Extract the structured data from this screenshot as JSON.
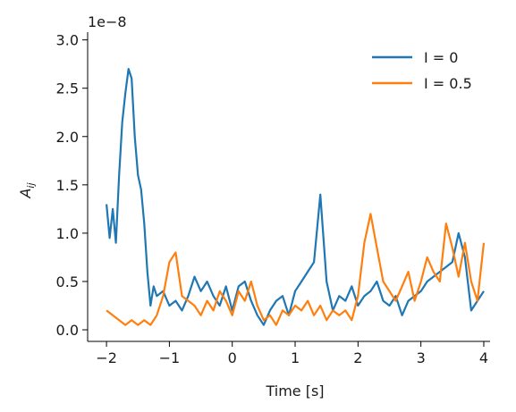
{
  "chart_data": {
    "type": "line",
    "title": "",
    "xlabel": "Time [s]",
    "ylabel_base": "A",
    "ylabel_sub": "ij",
    "offset_text": "1e−8",
    "xlim": [
      -2.3,
      4.1
    ],
    "ylim": [
      -0.12,
      3.08
    ],
    "xticks": [
      -2,
      -1,
      0,
      1,
      2,
      3,
      4
    ],
    "xtick_labels": [
      "−2",
      "−1",
      "0",
      "1",
      "2",
      "3",
      "4"
    ],
    "yticks": [
      0.0,
      0.5,
      1.0,
      1.5,
      2.0,
      2.5,
      3.0
    ],
    "ytick_labels": [
      "0.0",
      "0.5",
      "1.0",
      "1.5",
      "2.0",
      "2.5",
      "3.0"
    ],
    "grid": false,
    "legend_position": "top-right",
    "series": [
      {
        "name": "I = 0",
        "color": "#1f77b4",
        "x": [
          -2.0,
          -1.95,
          -1.9,
          -1.85,
          -1.8,
          -1.75,
          -1.7,
          -1.65,
          -1.6,
          -1.55,
          -1.5,
          -1.45,
          -1.4,
          -1.35,
          -1.3,
          -1.25,
          -1.2,
          -1.1,
          -1.0,
          -0.9,
          -0.8,
          -0.7,
          -0.6,
          -0.5,
          -0.4,
          -0.3,
          -0.2,
          -0.1,
          0.0,
          0.1,
          0.2,
          0.3,
          0.4,
          0.5,
          0.6,
          0.7,
          0.8,
          0.9,
          1.0,
          1.1,
          1.2,
          1.3,
          1.4,
          1.5,
          1.6,
          1.7,
          1.8,
          1.9,
          2.0,
          2.1,
          2.2,
          2.3,
          2.4,
          2.5,
          2.6,
          2.7,
          2.8,
          2.9,
          3.0,
          3.1,
          3.2,
          3.3,
          3.4,
          3.5,
          3.6,
          3.7,
          3.8,
          3.9,
          4.0
        ],
        "values": [
          1.3,
          0.95,
          1.25,
          0.9,
          1.6,
          2.15,
          2.45,
          2.7,
          2.6,
          2.0,
          1.6,
          1.45,
          1.1,
          0.6,
          0.25,
          0.45,
          0.35,
          0.4,
          0.25,
          0.3,
          0.2,
          0.35,
          0.55,
          0.4,
          0.5,
          0.35,
          0.25,
          0.45,
          0.2,
          0.45,
          0.5,
          0.3,
          0.15,
          0.05,
          0.2,
          0.3,
          0.35,
          0.15,
          0.4,
          0.5,
          0.6,
          0.7,
          1.4,
          0.5,
          0.2,
          0.35,
          0.3,
          0.45,
          0.25,
          0.35,
          0.4,
          0.5,
          0.3,
          0.25,
          0.35,
          0.15,
          0.3,
          0.35,
          0.4,
          0.5,
          0.55,
          0.6,
          0.65,
          0.7,
          1.0,
          0.75,
          0.2,
          0.3,
          0.4
        ]
      },
      {
        "name": "I = 0.5",
        "color": "#ff7f0e",
        "x": [
          -2.0,
          -1.9,
          -1.8,
          -1.7,
          -1.6,
          -1.5,
          -1.4,
          -1.3,
          -1.2,
          -1.1,
          -1.0,
          -0.9,
          -0.8,
          -0.7,
          -0.6,
          -0.5,
          -0.4,
          -0.3,
          -0.2,
          -0.1,
          0.0,
          0.1,
          0.2,
          0.3,
          0.4,
          0.5,
          0.6,
          0.7,
          0.8,
          0.9,
          1.0,
          1.1,
          1.2,
          1.3,
          1.4,
          1.5,
          1.6,
          1.7,
          1.8,
          1.9,
          2.0,
          2.1,
          2.2,
          2.3,
          2.4,
          2.5,
          2.6,
          2.7,
          2.8,
          2.9,
          3.0,
          3.1,
          3.2,
          3.3,
          3.4,
          3.5,
          3.6,
          3.7,
          3.8,
          3.9,
          4.0
        ],
        "values": [
          0.2,
          0.15,
          0.1,
          0.05,
          0.1,
          0.05,
          0.1,
          0.05,
          0.15,
          0.35,
          0.7,
          0.8,
          0.35,
          0.3,
          0.25,
          0.15,
          0.3,
          0.2,
          0.4,
          0.3,
          0.15,
          0.4,
          0.3,
          0.5,
          0.25,
          0.1,
          0.15,
          0.05,
          0.2,
          0.15,
          0.25,
          0.2,
          0.3,
          0.15,
          0.25,
          0.1,
          0.2,
          0.15,
          0.2,
          0.1,
          0.35,
          0.9,
          1.2,
          0.85,
          0.5,
          0.4,
          0.3,
          0.45,
          0.6,
          0.3,
          0.5,
          0.75,
          0.6,
          0.5,
          1.1,
          0.85,
          0.55,
          0.9,
          0.5,
          0.3,
          0.9
        ]
      }
    ]
  }
}
